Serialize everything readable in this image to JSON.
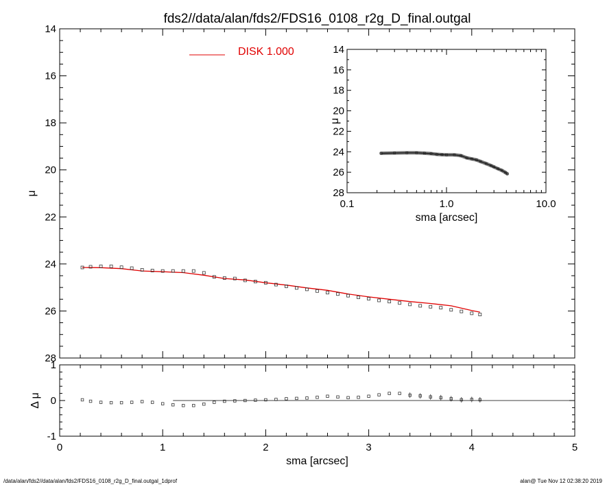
{
  "footer": {
    "left": "/data/alan/fds2//data/alan/fds2/FDS16_0108_r2g_D_final.outgal_1dprof",
    "right": "alan@  Tue Nov 12 02:38:20 2019"
  },
  "colors": {
    "model": "#e00000",
    "data": "#000000"
  },
  "chart_data": [
    {
      "id": "main",
      "type": "scatter",
      "title": "fds2//data/alan/fds2/FDS16_0108_r2g_D_final.outgal",
      "xlabel": "",
      "ylabel": "μ",
      "xlim": [
        0,
        5
      ],
      "ylim": [
        28,
        14
      ],
      "yticks": [
        14,
        16,
        18,
        20,
        22,
        24,
        26,
        28
      ],
      "yticklabels": [
        "14",
        "16",
        "18",
        "20",
        "22",
        "24",
        "26",
        "28"
      ],
      "legend": {
        "label": "DISK  1.000",
        "placement": "top-center"
      },
      "series": [
        {
          "kind": "points",
          "x": [
            0.22,
            0.3,
            0.4,
            0.5,
            0.6,
            0.7,
            0.8,
            0.9,
            1.0,
            1.1,
            1.2,
            1.3,
            1.4,
            1.5,
            1.6,
            1.7,
            1.8,
            1.9,
            2.0,
            2.1,
            2.2,
            2.3,
            2.4,
            2.5,
            2.6,
            2.7,
            2.8,
            2.9,
            3.0,
            3.1,
            3.2,
            3.3,
            3.4,
            3.5,
            3.6,
            3.7,
            3.8,
            3.9,
            4.0,
            4.08
          ],
          "y": [
            24.15,
            24.12,
            24.1,
            24.1,
            24.14,
            24.18,
            24.25,
            24.28,
            24.3,
            24.3,
            24.3,
            24.3,
            24.38,
            24.55,
            24.6,
            24.62,
            24.7,
            24.75,
            24.8,
            24.88,
            24.95,
            25.02,
            25.08,
            25.15,
            25.22,
            25.28,
            25.35,
            25.42,
            25.48,
            25.55,
            25.6,
            25.66,
            25.72,
            25.78,
            25.82,
            25.86,
            25.95,
            26.02,
            26.1,
            26.15
          ]
        },
        {
          "name": "DISK  1.000",
          "kind": "line",
          "x": [
            0.22,
            0.4,
            0.6,
            0.8,
            1.0,
            1.2,
            1.4,
            1.6,
            1.8,
            2.0,
            2.2,
            2.4,
            2.6,
            2.8,
            3.0,
            3.2,
            3.4,
            3.6,
            3.8,
            4.0,
            4.08
          ],
          "y": [
            24.15,
            24.16,
            24.2,
            24.3,
            24.33,
            24.37,
            24.48,
            24.62,
            24.68,
            24.8,
            24.9,
            25.02,
            25.12,
            25.28,
            25.4,
            25.5,
            25.6,
            25.68,
            25.78,
            25.98,
            26.05
          ]
        }
      ]
    },
    {
      "id": "inset",
      "type": "scatter",
      "xlabel": "sma [arcsec]",
      "ylabel": "μ",
      "xscale": "log",
      "xlim": [
        0.1,
        10
      ],
      "xticks": [
        0.1,
        1,
        10
      ],
      "xticklabels": [
        "0.1",
        "1.0",
        "10.0"
      ],
      "ylim": [
        28,
        14
      ],
      "yticks": [
        14,
        16,
        18,
        20,
        22,
        24,
        26,
        28
      ],
      "yticklabels": [
        "14",
        "16",
        "18",
        "20",
        "22",
        "24",
        "26",
        "28"
      ],
      "series": [
        {
          "kind": "points",
          "x": [
            0.22,
            0.3,
            0.4,
            0.5,
            0.6,
            0.7,
            0.8,
            0.9,
            1.0,
            1.2,
            1.4,
            1.6,
            1.8,
            2.0,
            2.2,
            2.5,
            2.8,
            3.0,
            3.3,
            3.6,
            3.9,
            4.08
          ],
          "y": [
            24.15,
            24.12,
            24.1,
            24.1,
            24.14,
            24.18,
            24.25,
            24.28,
            24.3,
            24.3,
            24.38,
            24.6,
            24.7,
            24.8,
            24.95,
            25.15,
            25.35,
            25.48,
            25.66,
            25.82,
            26.02,
            26.15
          ]
        }
      ]
    },
    {
      "id": "residual",
      "type": "scatter",
      "xlabel": "sma [arcsec]",
      "ylabel": "Δ μ",
      "xlim": [
        0,
        5
      ],
      "xticks": [
        0,
        1,
        2,
        3,
        4,
        5
      ],
      "xticklabels": [
        "0",
        "1",
        "2",
        "3",
        "4",
        "5"
      ],
      "ylim": [
        -1,
        1
      ],
      "yticks": [
        -1,
        0,
        1
      ],
      "yticklabels": [
        "-1",
        "0",
        "1"
      ],
      "reference_line": 0,
      "series": [
        {
          "kind": "points",
          "x": [
            0.22,
            0.3,
            0.4,
            0.5,
            0.6,
            0.7,
            0.8,
            0.9,
            1.0,
            1.1,
            1.2,
            1.3,
            1.4,
            1.5,
            1.6,
            1.7,
            1.8,
            1.9,
            2.0,
            2.1,
            2.2,
            2.3,
            2.4,
            2.5,
            2.6,
            2.7,
            2.8,
            2.9,
            3.0,
            3.1,
            3.2,
            3.3,
            3.4,
            3.5,
            3.6,
            3.7,
            3.8,
            3.9,
            4.0,
            4.08
          ],
          "y": [
            0.02,
            -0.02,
            -0.05,
            -0.06,
            -0.06,
            -0.05,
            -0.03,
            -0.05,
            -0.09,
            -0.12,
            -0.14,
            -0.14,
            -0.1,
            -0.05,
            -0.02,
            -0.01,
            0.0,
            0.01,
            0.02,
            0.03,
            0.05,
            0.06,
            0.07,
            0.09,
            0.12,
            0.1,
            0.08,
            0.09,
            0.12,
            0.16,
            0.2,
            0.2,
            0.15,
            0.13,
            0.1,
            0.08,
            0.05,
            0.02,
            0.03,
            0.02
          ]
        }
      ]
    }
  ]
}
